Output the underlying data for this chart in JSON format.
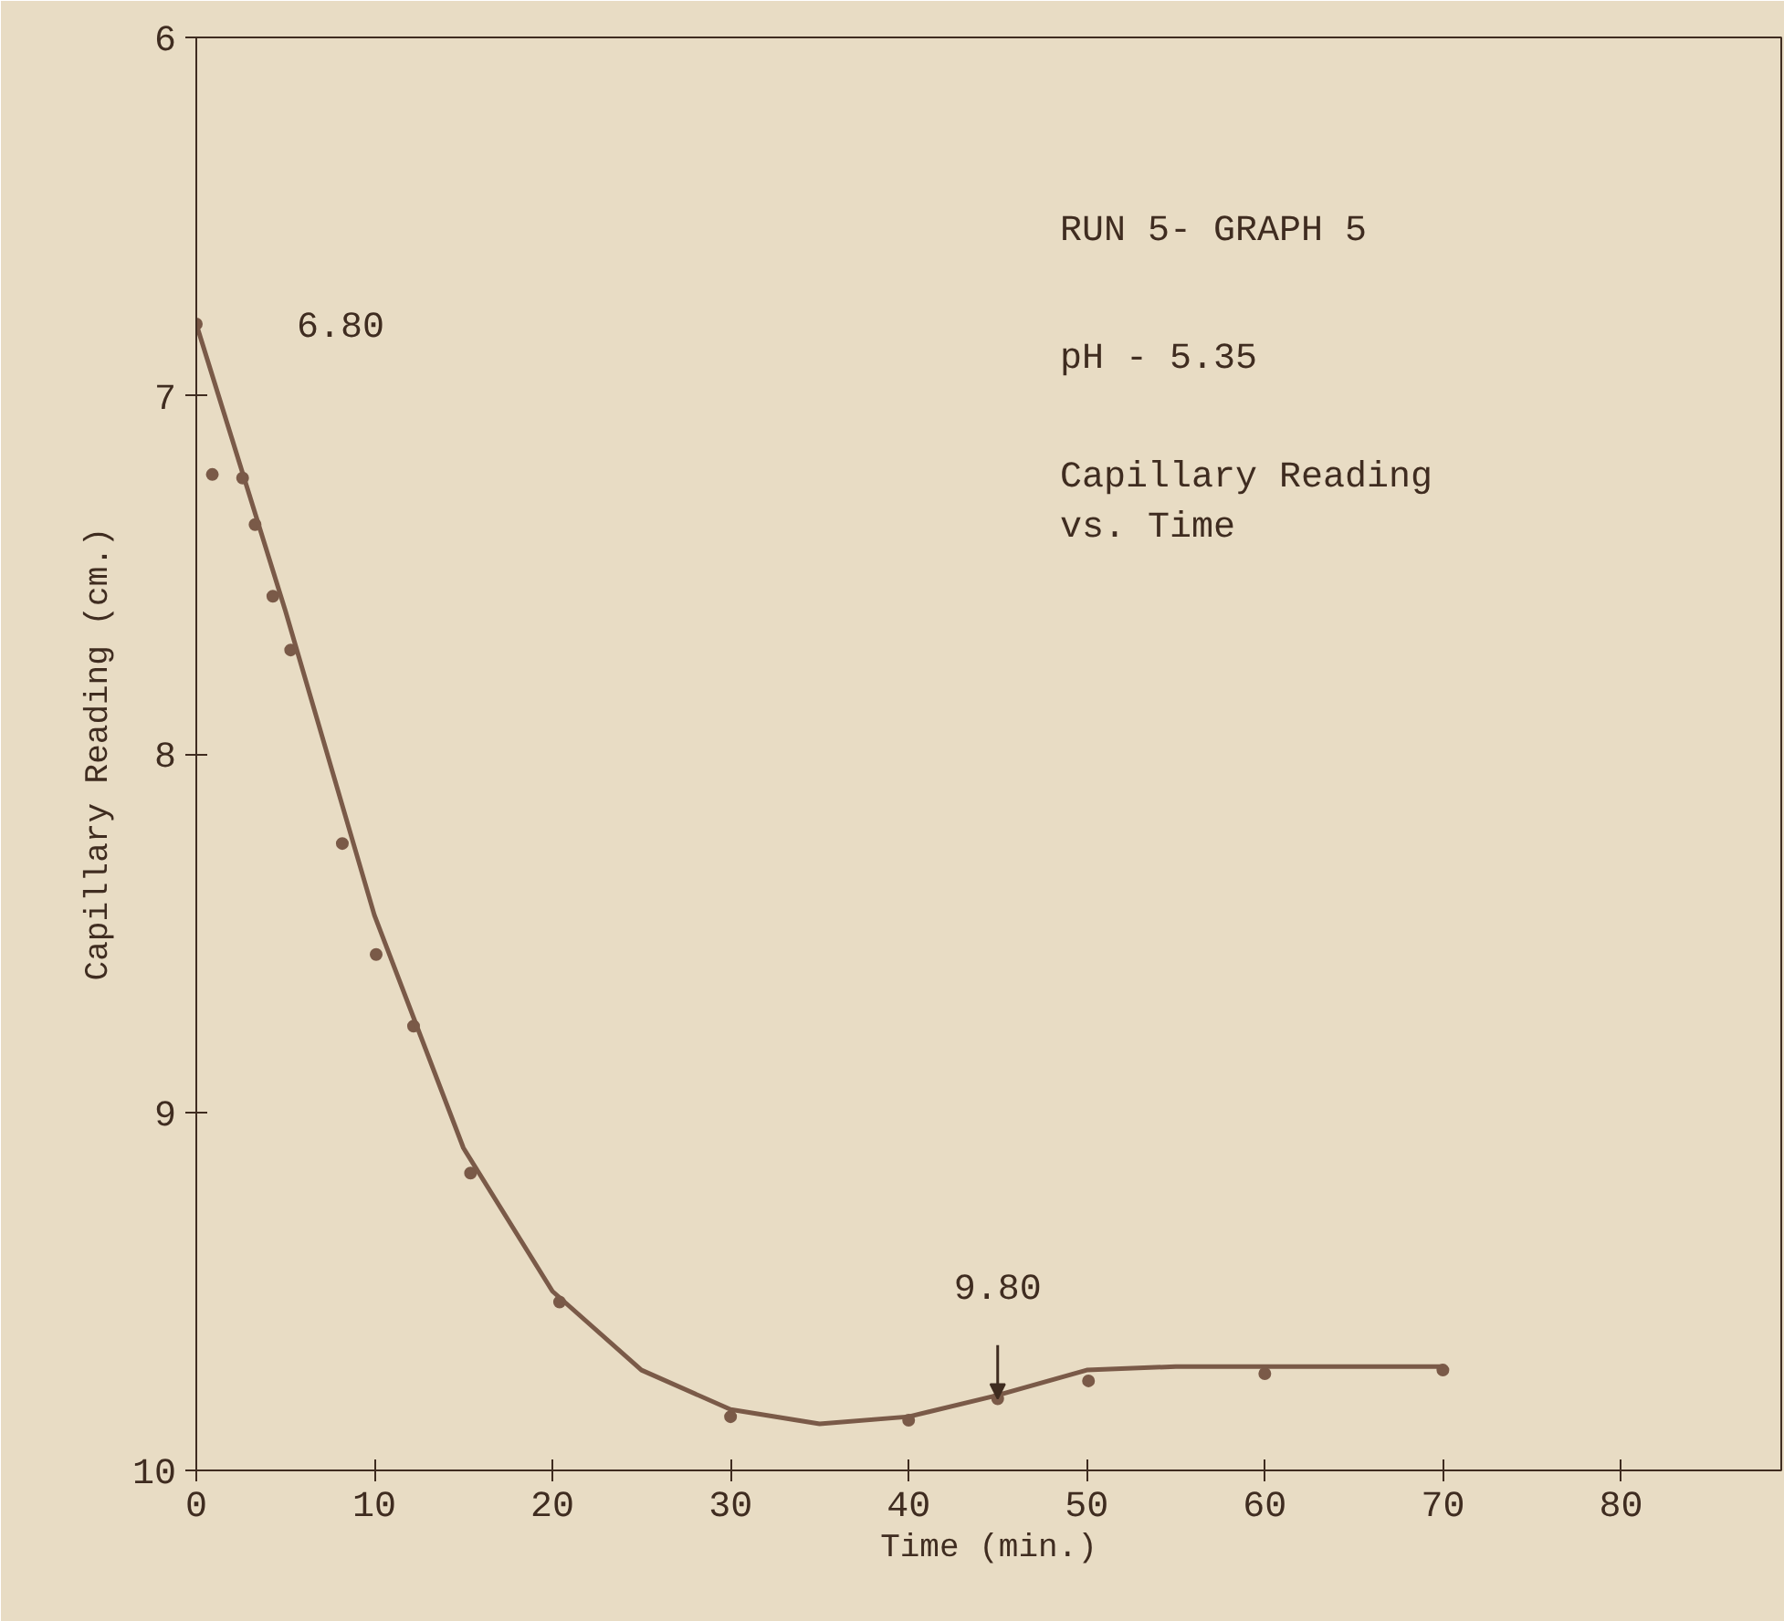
{
  "chart_data": {
    "type": "scatter",
    "xlabel": "Time (min.)",
    "ylabel": "Capillary Reading (cm.)",
    "xlim": [
      0,
      89
    ],
    "ylim": [
      10,
      6
    ],
    "xticks": [
      0,
      10,
      20,
      30,
      40,
      50,
      60,
      70,
      80
    ],
    "yticks": [
      6,
      7,
      8,
      9,
      10
    ],
    "grid": false,
    "series": [
      {
        "marker": "circle",
        "color": "#7a5a48",
        "x": [
          0,
          0.9,
          2.6,
          3.3,
          4.3,
          5.3,
          8.2,
          10.1,
          12.2,
          15.4,
          20.4,
          30,
          40,
          45,
          50.1,
          60,
          70
        ],
        "values": [
          6.8,
          7.22,
          7.23,
          7.36,
          7.56,
          7.71,
          8.25,
          8.56,
          8.76,
          9.17,
          9.53,
          9.85,
          9.86,
          9.8,
          9.75,
          9.73,
          9.72
        ]
      },
      {
        "type": "line",
        "line_style": "solid",
        "color": "#7a5a48",
        "x": [
          0,
          2,
          5,
          10,
          15,
          20,
          25,
          30,
          35,
          40,
          45,
          50,
          55,
          60,
          70
        ],
        "values": [
          6.8,
          7.12,
          7.6,
          8.45,
          9.1,
          9.5,
          9.72,
          9.83,
          9.87,
          9.85,
          9.79,
          9.72,
          9.71,
          9.71,
          9.71
        ]
      }
    ],
    "annotations": [
      {
        "text": "6.80",
        "x": 0,
        "y": 6.8
      },
      {
        "text": "9.80",
        "x": 45,
        "y": 9.8
      },
      "RUN 5- GRAPH 5",
      "pH - 5.35",
      "Capillary Reading\nvs. Time"
    ]
  }
}
